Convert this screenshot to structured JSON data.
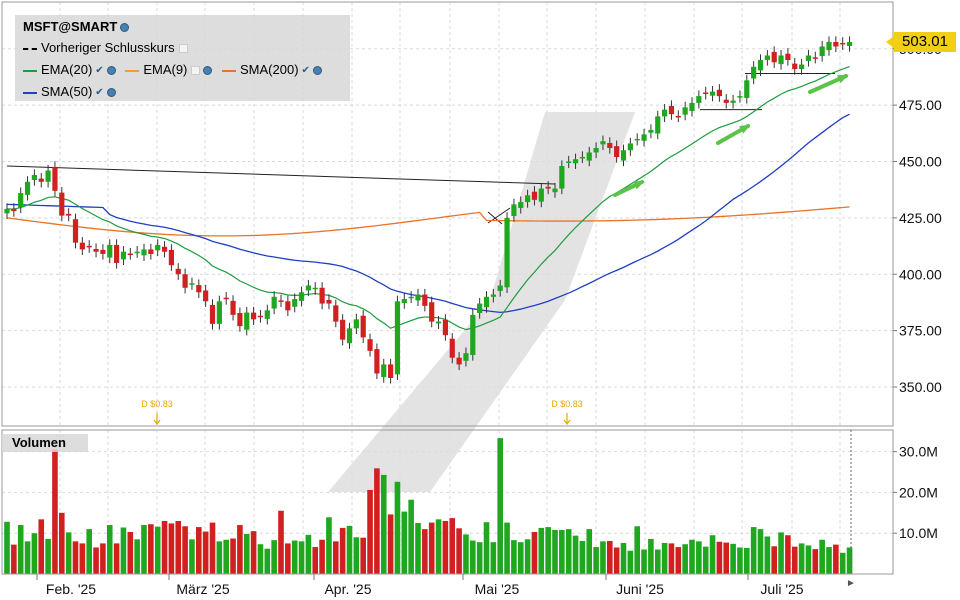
{
  "symbol": "MSFT@SMART",
  "legend": {
    "prev_close": "Vorheriger Schlusskurs",
    "ema20": "EMA(20)",
    "ema9": "EMA(9)",
    "sma200": "SMA(200)",
    "sma50": "SMA(50)"
  },
  "volume_label": "Volumen",
  "current_price": "503.01",
  "colors": {
    "up": "#1fa71f",
    "down": "#d12020",
    "ema20": "#1e9c3e",
    "ema9": "#f0a030",
    "sma200": "#e8742a",
    "sma50": "#1f3fc4",
    "badge": "#f2cf15",
    "grid": "#d9d9d9",
    "dividend": "#e8a800",
    "trend": "#222222",
    "arrow": "#5cc24a",
    "channel": "#dcdcdc"
  },
  "chart_data": {
    "type": "candlestick",
    "price_axis": {
      "ylim": [
        330,
        510
      ],
      "ticks": [
        "350.00",
        "375.00",
        "400.00",
        "425.00",
        "450.00",
        "475.00",
        "500.00"
      ]
    },
    "volume_axis": {
      "ylim": [
        0,
        34
      ],
      "unit": "M",
      "ticks": [
        "10.0M",
        "20.0M",
        "30.0M"
      ]
    },
    "x_axis": {
      "labels": [
        "Feb. '25",
        "März '25",
        "Apr. '25",
        "Mai '25",
        "Juni '25",
        "Juli '25"
      ]
    },
    "dividends": [
      {
        "label": "D $0.83",
        "month": "Feb."
      },
      {
        "label": "D $0.83",
        "month": "Mai"
      }
    ],
    "closes": [
      429,
      428,
      436,
      441,
      444,
      441,
      446,
      437,
      426,
      426,
      414,
      411,
      412,
      410,
      409,
      413,
      405,
      410,
      409,
      410,
      411,
      409,
      413,
      410,
      404,
      400,
      394,
      396,
      392,
      388,
      378,
      388,
      389,
      382,
      377,
      383,
      380,
      381,
      384,
      390,
      388,
      384,
      389,
      392,
      395,
      394,
      387,
      387,
      379,
      371,
      376,
      380,
      372,
      366,
      356,
      360,
      354,
      388,
      389,
      390,
      391,
      386,
      379,
      379,
      373,
      363,
      360,
      365,
      382,
      387,
      390,
      391,
      395,
      425,
      431,
      432,
      435,
      433,
      438,
      438,
      438,
      448,
      450,
      451,
      452,
      454,
      456,
      459,
      456,
      452,
      455,
      458,
      460,
      462,
      464,
      470,
      473,
      471,
      470,
      474,
      476,
      479,
      480,
      481,
      479,
      476,
      477,
      479,
      486,
      492,
      495,
      497,
      494,
      497,
      495,
      491,
      493,
      497,
      496,
      501,
      503,
      501,
      502,
      503
    ],
    "volume": [
      12.8,
      7.2,
      12.0,
      8.0,
      10.0,
      13.4,
      8.6,
      30.5,
      15.0,
      10.2,
      8.0,
      7.5,
      11.0,
      6.5,
      7.5,
      12.0,
      7.5,
      11.4,
      10.3,
      8.5,
      12.0,
      12.2,
      11.6,
      13.0,
      12.4,
      13.0,
      11.7,
      8.5,
      11.5,
      10.4,
      12.6,
      8.0,
      8.4,
      8.7,
      12.0,
      9.8,
      10.5,
      7.3,
      6.2,
      8.3,
      15.5,
      7.5,
      8.2,
      8.0,
      9.6,
      6.6,
      8.4,
      13.9,
      8.0,
      11.3,
      11.8,
      9.0,
      8.9,
      20.6,
      25.9,
      24.3,
      14.6,
      22.6,
      15.3,
      18.2,
      12.5,
      11.0,
      12.6,
      13.4,
      13.0,
      13.7,
      11.2,
      9.7,
      8.2,
      7.8,
      12.7,
      7.8,
      33.3,
      12.6,
      8.3,
      7.8,
      8.5,
      10.3,
      11.3,
      11.5,
      10.8,
      10.8,
      11.0,
      9.4,
      8.1,
      11.0,
      6.6,
      8.0,
      8.1,
      6.5,
      7.6,
      5.7,
      11.7,
      6.0,
      8.6,
      6.0,
      7.6,
      7.5,
      6.6,
      7.3,
      8.4,
      8.0,
      6.7,
      9.5,
      7.9,
      7.7,
      7.4,
      6.5,
      6.4,
      11.5,
      11.0,
      9.2,
      6.8,
      10.2,
      9.5,
      6.7,
      7.5,
      7.0,
      6.1,
      8.4,
      6.6,
      7.2,
      5.2,
      6.5
    ]
  }
}
